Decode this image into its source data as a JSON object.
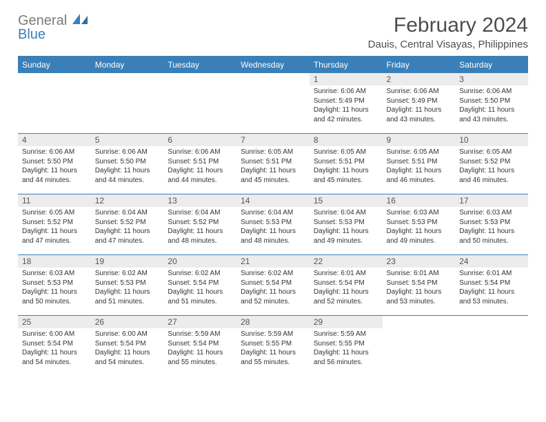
{
  "theme": {
    "brand_blue": "#3a7fb8",
    "brand_gray": "#7a7a7a",
    "header_bg": "#3a7fb8",
    "header_fg": "#ffffff",
    "daynum_bg": "#ececec",
    "text_color": "#333333",
    "border_color": "#3a7fb8"
  },
  "logo": {
    "text_top": "General",
    "text_bottom": "Blue"
  },
  "title": {
    "month": "February 2024",
    "location": "Dauis, Central Visayas, Philippines"
  },
  "columns": [
    "Sunday",
    "Monday",
    "Tuesday",
    "Wednesday",
    "Thursday",
    "Friday",
    "Saturday"
  ],
  "weeks": [
    [
      null,
      null,
      null,
      null,
      {
        "n": "1",
        "sunrise": "Sunrise: 6:06 AM",
        "sunset": "Sunset: 5:49 PM",
        "daylight": "Daylight: 11 hours and 42 minutes."
      },
      {
        "n": "2",
        "sunrise": "Sunrise: 6:06 AM",
        "sunset": "Sunset: 5:49 PM",
        "daylight": "Daylight: 11 hours and 43 minutes."
      },
      {
        "n": "3",
        "sunrise": "Sunrise: 6:06 AM",
        "sunset": "Sunset: 5:50 PM",
        "daylight": "Daylight: 11 hours and 43 minutes."
      }
    ],
    [
      {
        "n": "4",
        "sunrise": "Sunrise: 6:06 AM",
        "sunset": "Sunset: 5:50 PM",
        "daylight": "Daylight: 11 hours and 44 minutes."
      },
      {
        "n": "5",
        "sunrise": "Sunrise: 6:06 AM",
        "sunset": "Sunset: 5:50 PM",
        "daylight": "Daylight: 11 hours and 44 minutes."
      },
      {
        "n": "6",
        "sunrise": "Sunrise: 6:06 AM",
        "sunset": "Sunset: 5:51 PM",
        "daylight": "Daylight: 11 hours and 44 minutes."
      },
      {
        "n": "7",
        "sunrise": "Sunrise: 6:05 AM",
        "sunset": "Sunset: 5:51 PM",
        "daylight": "Daylight: 11 hours and 45 minutes."
      },
      {
        "n": "8",
        "sunrise": "Sunrise: 6:05 AM",
        "sunset": "Sunset: 5:51 PM",
        "daylight": "Daylight: 11 hours and 45 minutes."
      },
      {
        "n": "9",
        "sunrise": "Sunrise: 6:05 AM",
        "sunset": "Sunset: 5:51 PM",
        "daylight": "Daylight: 11 hours and 46 minutes."
      },
      {
        "n": "10",
        "sunrise": "Sunrise: 6:05 AM",
        "sunset": "Sunset: 5:52 PM",
        "daylight": "Daylight: 11 hours and 46 minutes."
      }
    ],
    [
      {
        "n": "11",
        "sunrise": "Sunrise: 6:05 AM",
        "sunset": "Sunset: 5:52 PM",
        "daylight": "Daylight: 11 hours and 47 minutes."
      },
      {
        "n": "12",
        "sunrise": "Sunrise: 6:04 AM",
        "sunset": "Sunset: 5:52 PM",
        "daylight": "Daylight: 11 hours and 47 minutes."
      },
      {
        "n": "13",
        "sunrise": "Sunrise: 6:04 AM",
        "sunset": "Sunset: 5:52 PM",
        "daylight": "Daylight: 11 hours and 48 minutes."
      },
      {
        "n": "14",
        "sunrise": "Sunrise: 6:04 AM",
        "sunset": "Sunset: 5:53 PM",
        "daylight": "Daylight: 11 hours and 48 minutes."
      },
      {
        "n": "15",
        "sunrise": "Sunrise: 6:04 AM",
        "sunset": "Sunset: 5:53 PM",
        "daylight": "Daylight: 11 hours and 49 minutes."
      },
      {
        "n": "16",
        "sunrise": "Sunrise: 6:03 AM",
        "sunset": "Sunset: 5:53 PM",
        "daylight": "Daylight: 11 hours and 49 minutes."
      },
      {
        "n": "17",
        "sunrise": "Sunrise: 6:03 AM",
        "sunset": "Sunset: 5:53 PM",
        "daylight": "Daylight: 11 hours and 50 minutes."
      }
    ],
    [
      {
        "n": "18",
        "sunrise": "Sunrise: 6:03 AM",
        "sunset": "Sunset: 5:53 PM",
        "daylight": "Daylight: 11 hours and 50 minutes."
      },
      {
        "n": "19",
        "sunrise": "Sunrise: 6:02 AM",
        "sunset": "Sunset: 5:53 PM",
        "daylight": "Daylight: 11 hours and 51 minutes."
      },
      {
        "n": "20",
        "sunrise": "Sunrise: 6:02 AM",
        "sunset": "Sunset: 5:54 PM",
        "daylight": "Daylight: 11 hours and 51 minutes."
      },
      {
        "n": "21",
        "sunrise": "Sunrise: 6:02 AM",
        "sunset": "Sunset: 5:54 PM",
        "daylight": "Daylight: 11 hours and 52 minutes."
      },
      {
        "n": "22",
        "sunrise": "Sunrise: 6:01 AM",
        "sunset": "Sunset: 5:54 PM",
        "daylight": "Daylight: 11 hours and 52 minutes."
      },
      {
        "n": "23",
        "sunrise": "Sunrise: 6:01 AM",
        "sunset": "Sunset: 5:54 PM",
        "daylight": "Daylight: 11 hours and 53 minutes."
      },
      {
        "n": "24",
        "sunrise": "Sunrise: 6:01 AM",
        "sunset": "Sunset: 5:54 PM",
        "daylight": "Daylight: 11 hours and 53 minutes."
      }
    ],
    [
      {
        "n": "25",
        "sunrise": "Sunrise: 6:00 AM",
        "sunset": "Sunset: 5:54 PM",
        "daylight": "Daylight: 11 hours and 54 minutes."
      },
      {
        "n": "26",
        "sunrise": "Sunrise: 6:00 AM",
        "sunset": "Sunset: 5:54 PM",
        "daylight": "Daylight: 11 hours and 54 minutes."
      },
      {
        "n": "27",
        "sunrise": "Sunrise: 5:59 AM",
        "sunset": "Sunset: 5:54 PM",
        "daylight": "Daylight: 11 hours and 55 minutes."
      },
      {
        "n": "28",
        "sunrise": "Sunrise: 5:59 AM",
        "sunset": "Sunset: 5:55 PM",
        "daylight": "Daylight: 11 hours and 55 minutes."
      },
      {
        "n": "29",
        "sunrise": "Sunrise: 5:59 AM",
        "sunset": "Sunset: 5:55 PM",
        "daylight": "Daylight: 11 hours and 56 minutes."
      },
      null,
      null
    ]
  ]
}
